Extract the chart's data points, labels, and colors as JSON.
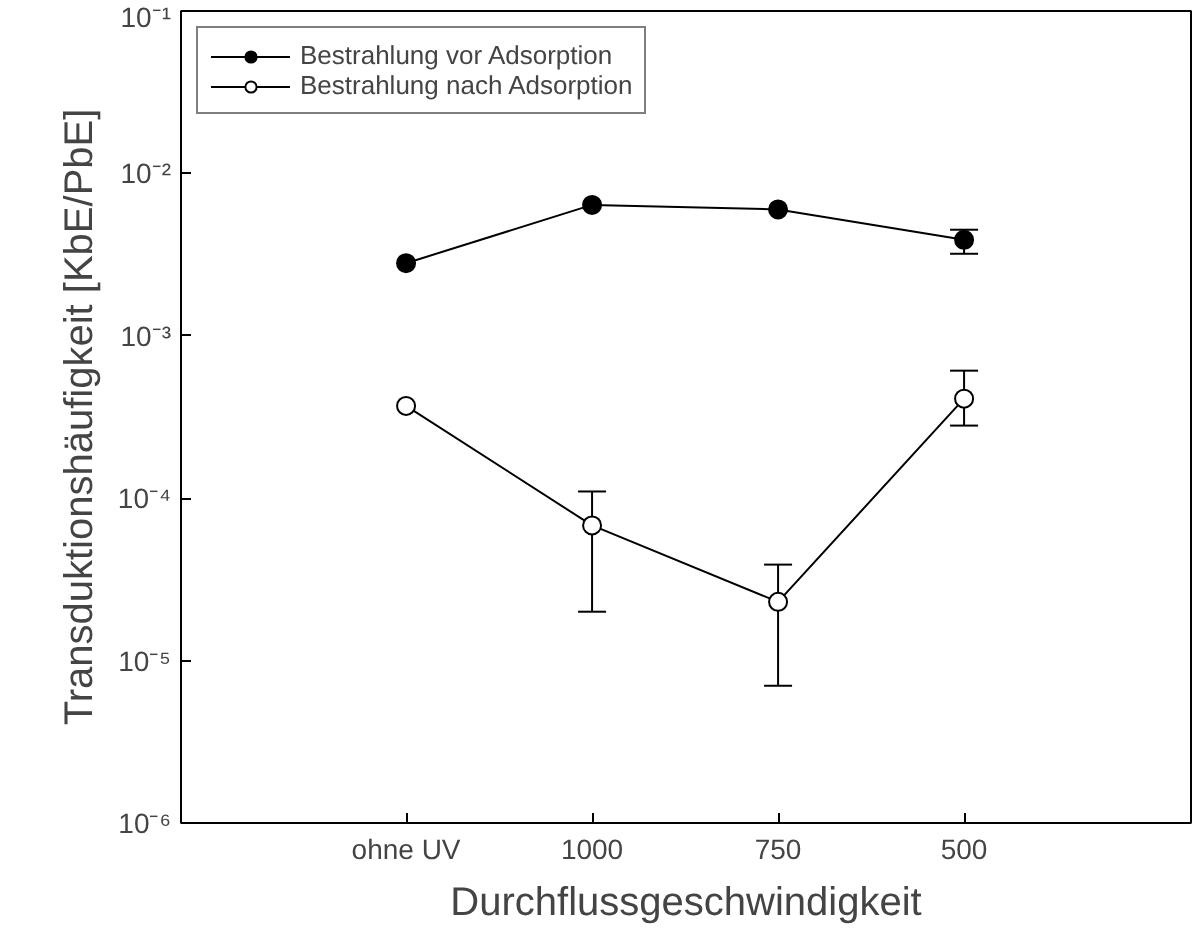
{
  "chart_data": {
    "type": "line",
    "xlabel": "Durchflussgeschwindigkeit",
    "ylabel": "Transduktionshäufigkeit [KbE/PbE]",
    "categories": [
      "ohne UV",
      "1000",
      "750",
      "500"
    ],
    "log": true,
    "ylim": [
      1e-06,
      0.1
    ],
    "yticks": [
      {
        "value": 1e-06,
        "label": "10⁻⁶"
      },
      {
        "value": 1e-05,
        "label": "10⁻⁵"
      },
      {
        "value": 0.0001,
        "label": "10⁻⁴"
      },
      {
        "value": 0.001,
        "label": "10⁻³"
      },
      {
        "value": 0.01,
        "label": "10⁻²"
      },
      {
        "value": 0.1,
        "label": "10⁻¹"
      }
    ],
    "grid": false,
    "legend": "top left",
    "marker": "circle",
    "line_style": "solid",
    "series": [
      {
        "name": "Bestrahlung vor Adsorption",
        "color": "#000000",
        "values": [
          0.0028,
          0.0064,
          0.006,
          0.0039
        ],
        "errors": [
          null,
          null,
          null,
          [
            0.0032,
            0.0045
          ]
        ]
      },
      {
        "name": "Bestrahlung nach Adsorption",
        "color": "#ffffff",
        "values": [
          0.00037,
          6.8e-05,
          2.3e-05,
          0.00041
        ],
        "errors": [
          null,
          [
            2e-05,
            0.00011
          ],
          [
            7e-06,
            3.9e-05
          ],
          [
            0.00028,
            0.00061
          ]
        ]
      }
    ]
  }
}
